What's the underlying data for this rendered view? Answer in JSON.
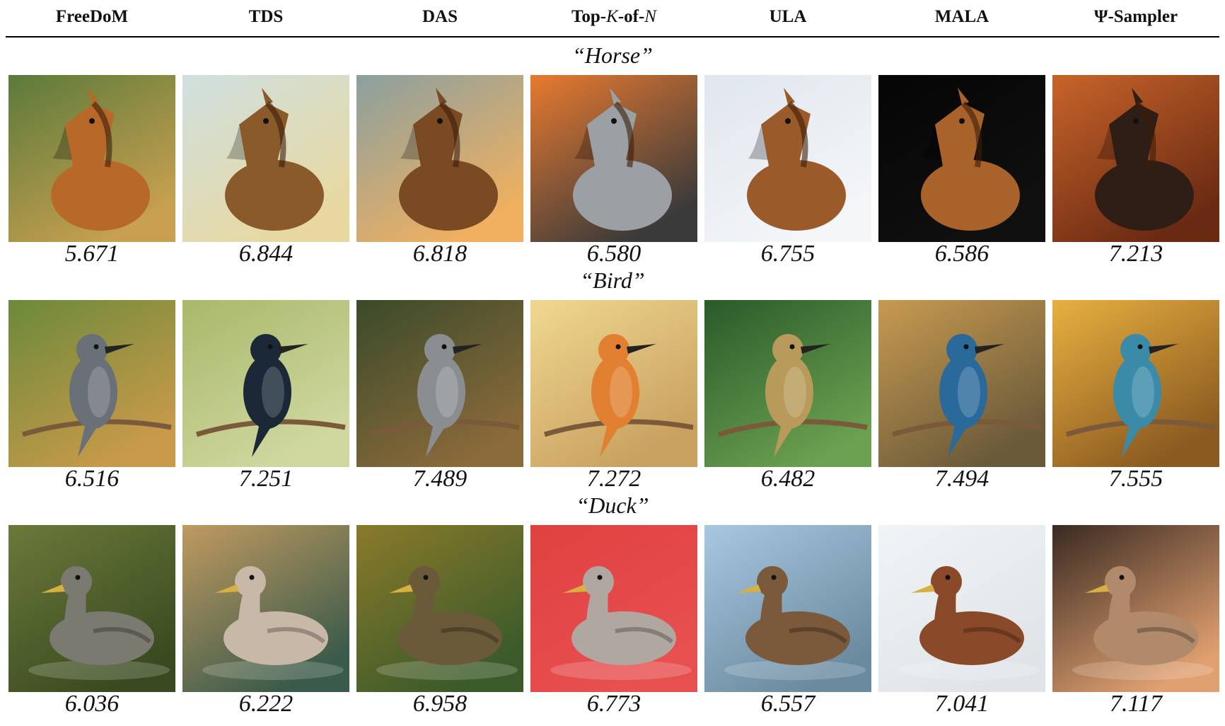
{
  "columns": [
    {
      "label": "FreeDoM"
    },
    {
      "label": "TDS"
    },
    {
      "label": "DAS"
    },
    {
      "label_prefix": "Top-",
      "label_k": "K",
      "label_mid": "-of-",
      "label_n": "N"
    },
    {
      "label": "ULA"
    },
    {
      "label": "MALA"
    },
    {
      "label": "Ψ-Sampler"
    }
  ],
  "rows": [
    {
      "prompt": "“Horse”",
      "scores": [
        "5.671",
        "6.844",
        "6.818",
        "6.580",
        "6.755",
        "6.586",
        "7.213"
      ],
      "images": [
        {
          "subject": "horse",
          "bg": [
            "#5a7a3a",
            "#c8a050"
          ],
          "body": "#b8692a"
        },
        {
          "subject": "horse",
          "bg": [
            "#cfe0e0",
            "#e8d8a0"
          ],
          "body": "#8a5a2a"
        },
        {
          "subject": "horse",
          "bg": [
            "#8aa0a0",
            "#f0b060"
          ],
          "body": "#7a4a22"
        },
        {
          "subject": "horse",
          "bg": [
            "#e87a30",
            "#3a3a3a"
          ],
          "body": "#9aa0a4"
        },
        {
          "subject": "horse",
          "bg": [
            "#dfe6ee",
            "#f4f6f8"
          ],
          "body": "#9a5a2a"
        },
        {
          "subject": "horse",
          "bg": [
            "#050505",
            "#101010"
          ],
          "body": "#a8622a"
        },
        {
          "subject": "horse",
          "bg": [
            "#c8642a",
            "#6a2a12"
          ],
          "body": "#2e1e16"
        }
      ]
    },
    {
      "prompt": "“Bird”",
      "scores": [
        "6.516",
        "7.251",
        "7.489",
        "7.272",
        "6.482",
        "7.494",
        "7.555"
      ],
      "images": [
        {
          "subject": "bird",
          "bg": [
            "#6a8a3a",
            "#c89a4a"
          ],
          "body": "#6a7078"
        },
        {
          "subject": "bird",
          "bg": [
            "#a8b86a",
            "#d0d8a0"
          ],
          "body": "#1a2838"
        },
        {
          "subject": "bird",
          "bg": [
            "#3a4a2a",
            "#8a6a3a"
          ],
          "body": "#8a8e90"
        },
        {
          "subject": "bird",
          "bg": [
            "#f0d890",
            "#c8a060"
          ],
          "body": "#e08030"
        },
        {
          "subject": "bird",
          "bg": [
            "#2a5a2a",
            "#6aa050"
          ],
          "body": "#b89a5a"
        },
        {
          "subject": "bird",
          "bg": [
            "#c89a50",
            "#6a5a3a"
          ],
          "body": "#2a6a9a"
        },
        {
          "subject": "bird",
          "bg": [
            "#e8b040",
            "#8a5a20"
          ],
          "body": "#3a8aa8"
        }
      ]
    },
    {
      "prompt": "“Duck”",
      "scores": [
        "6.036",
        "6.222",
        "6.958",
        "6.773",
        "6.557",
        "7.041",
        "7.117"
      ],
      "images": [
        {
          "subject": "duck",
          "bg": [
            "#6a7a3a",
            "#3a4a20"
          ],
          "body": "#7a7a70"
        },
        {
          "subject": "duck",
          "bg": [
            "#c09a60",
            "#3a5a4a"
          ],
          "body": "#c8b8a8"
        },
        {
          "subject": "duck",
          "bg": [
            "#8a7a2a",
            "#3a5a2a"
          ],
          "body": "#6a5a3a"
        },
        {
          "subject": "duck",
          "bg": [
            "#e04040",
            "#e85050"
          ],
          "body": "#b0a8a0"
        },
        {
          "subject": "duck",
          "bg": [
            "#a8c8e0",
            "#6a8aa0"
          ],
          "body": "#7a5a3a"
        },
        {
          "subject": "duck",
          "bg": [
            "#f0f4f6",
            "#dfe4e8"
          ],
          "body": "#8a4a2a"
        },
        {
          "subject": "duck",
          "bg": [
            "#3a2a22",
            "#e0a070"
          ],
          "body": "#b08a6a"
        }
      ]
    }
  ]
}
